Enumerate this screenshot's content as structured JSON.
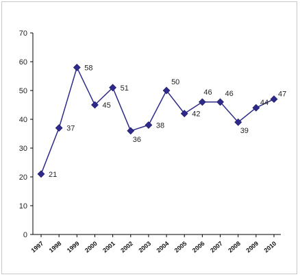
{
  "chart_data": {
    "type": "line",
    "categories": [
      "1997",
      "1998",
      "1999",
      "2000",
      "2001",
      "2002",
      "2003",
      "2004",
      "2005",
      "2006",
      "2007",
      "2008",
      "2009",
      "2010"
    ],
    "values": [
      21,
      37,
      58,
      45,
      51,
      36,
      38,
      50,
      42,
      46,
      46,
      39,
      44,
      47
    ],
    "data_labels": [
      "21",
      "37",
      "58",
      "45",
      "51",
      "36",
      "38",
      "50",
      "42",
      "46",
      "46",
      "39",
      "44",
      "47"
    ],
    "ylim": [
      0,
      70
    ],
    "yticks": [
      0,
      10,
      20,
      30,
      40,
      50,
      60,
      70
    ],
    "ytick_labels": [
      "0",
      "10",
      "20",
      "30",
      "40",
      "50",
      "60",
      "70"
    ],
    "xtick_labels": [
      "1997",
      "1998",
      "1999",
      "2000",
      "2001",
      "2002",
      "2003",
      "2004",
      "2005",
      "2006",
      "2007",
      "2008",
      "2009",
      "2010"
    ],
    "grid": false,
    "legend": false,
    "line_color": "#2e2a8a",
    "marker_color": "#2e2a8a",
    "marker": "diamond"
  }
}
